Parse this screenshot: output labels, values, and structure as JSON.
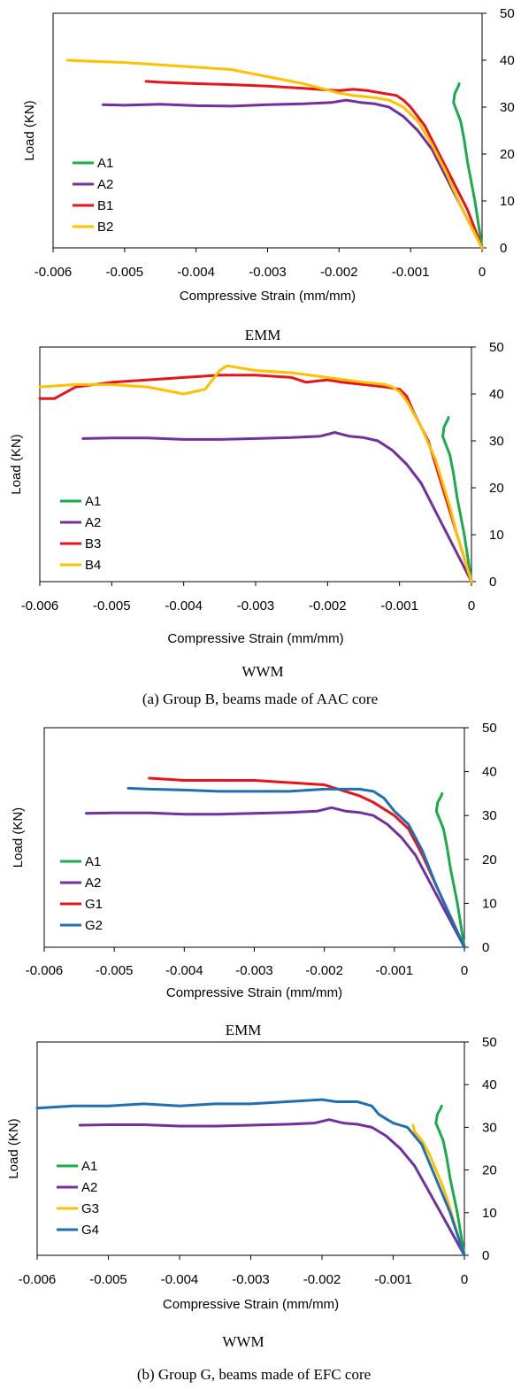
{
  "captions": {
    "chart1": "EMM",
    "chart2": "WWM",
    "group_b": "(a)  Group B, beams made of AAC core",
    "chart3": "EMM",
    "chart4": "WWM",
    "group_g": "(b)  Group G, beams made of EFC core"
  },
  "chart_data": [
    {
      "type": "line",
      "caption": "EMM",
      "xlabel": "Compressive Strain (mm/mm)",
      "ylabel": "Load (KN)",
      "xlim": [
        -0.006,
        0
      ],
      "ylim": [
        0,
        50
      ],
      "x_ticks": [
        "-0.006",
        "-0.005",
        "-0.004",
        "-0.003",
        "-0.002",
        "-0.001",
        "0"
      ],
      "y_ticks": [
        "0",
        "10",
        "20",
        "30",
        "40",
        "50"
      ],
      "grid": false,
      "legend": "left",
      "series": [
        {
          "name": "A1",
          "color": "#1aab4b",
          "x": [
            0,
            -0.0001,
            -0.0002,
            -0.00025,
            -0.0003,
            -0.00035,
            -0.0004,
            -0.00038,
            -0.00033,
            -0.00032
          ],
          "y": [
            0,
            10,
            18,
            23,
            27,
            29,
            31,
            33,
            34.5,
            35
          ]
        },
        {
          "name": "A2",
          "color": "#7030a0",
          "x": [
            0,
            -0.0001,
            -0.0003,
            -0.0005,
            -0.0007,
            -0.0009,
            -0.0011,
            -0.0013,
            -0.0015,
            -0.0017,
            -0.0019,
            -0.0021,
            -0.0025,
            -0.003,
            -0.0035,
            -0.004,
            -0.0045,
            -0.005,
            -0.0053
          ],
          "y": [
            0,
            3,
            9,
            15,
            21,
            25,
            28,
            30,
            30.7,
            31,
            31.5,
            31,
            30.7,
            30.5,
            30.2,
            30.3,
            30.6,
            30.4,
            30.5
          ]
        },
        {
          "name": "B1",
          "color": "#e8141b",
          "x": [
            0,
            -0.0002,
            -0.0004,
            -0.0006,
            -0.0008,
            -0.001,
            -0.0011,
            -0.0012,
            -0.0014,
            -0.0016,
            -0.0018,
            -0.002,
            -0.0025,
            -0.003,
            -0.0035,
            -0.004,
            -0.0045,
            -0.0047
          ],
          "y": [
            0,
            8,
            14,
            20,
            26,
            30,
            31.5,
            32.5,
            33,
            33.5,
            33.8,
            33.5,
            34,
            34.5,
            34.8,
            35,
            35.3,
            35.5
          ]
        },
        {
          "name": "B2",
          "color": "#ffc000",
          "x": [
            0,
            -0.0003,
            -0.0005,
            -0.0007,
            -0.0009,
            -0.0011,
            -0.0013,
            -0.0015,
            -0.0018,
            -0.002,
            -0.0025,
            -0.003,
            -0.0035,
            -0.004,
            -0.0045,
            -0.005,
            -0.0055,
            -0.0058
          ],
          "y": [
            0,
            9,
            16,
            22,
            27,
            30,
            31.5,
            32,
            32.5,
            33,
            35,
            36.5,
            38,
            38.5,
            39,
            39.5,
            39.8,
            40
          ]
        }
      ]
    },
    {
      "type": "line",
      "caption": "WWM",
      "xlabel": "Compressive Strain (mm/mm)",
      "ylabel": "Load (KN)",
      "xlim": [
        -0.006,
        0
      ],
      "ylim": [
        0,
        50
      ],
      "x_ticks": [
        "-0.006",
        "-0.005",
        "-0.004",
        "-0.003",
        "-0.002",
        "-0.001",
        "0"
      ],
      "y_ticks": [
        "0",
        "10",
        "20",
        "30",
        "40",
        "50"
      ],
      "grid": false,
      "legend": "left",
      "series": [
        {
          "name": "A1",
          "color": "#1aab4b",
          "x": [
            0,
            -0.0001,
            -0.0002,
            -0.00025,
            -0.0003,
            -0.00035,
            -0.0004,
            -0.00038,
            -0.00033,
            -0.00032
          ],
          "y": [
            0,
            10,
            18,
            23,
            27,
            29,
            31,
            33,
            34.5,
            35
          ]
        },
        {
          "name": "A2",
          "color": "#7030a0",
          "x": [
            0,
            -0.0001,
            -0.0003,
            -0.0005,
            -0.0007,
            -0.0009,
            -0.0011,
            -0.0013,
            -0.0015,
            -0.0017,
            -0.0019,
            -0.0021,
            -0.0025,
            -0.003,
            -0.0035,
            -0.004,
            -0.0045,
            -0.005,
            -0.0054
          ],
          "y": [
            0,
            3,
            9,
            15,
            21,
            25,
            28,
            30,
            30.7,
            31,
            31.8,
            31,
            30.7,
            30.5,
            30.3,
            30.3,
            30.6,
            30.6,
            30.5
          ]
        },
        {
          "name": "B3",
          "color": "#e8141b",
          "x": [
            0,
            -0.0002,
            -0.0004,
            -0.0006,
            -0.0008,
            -0.0009,
            -0.001,
            -0.0012,
            -0.0015,
            -0.0018,
            -0.002,
            -0.0023,
            -0.0025,
            -0.003,
            -0.0035,
            -0.004,
            -0.0045,
            -0.005,
            -0.0055,
            -0.0058,
            -0.006
          ],
          "y": [
            0,
            10,
            20,
            30,
            36,
            39.5,
            41,
            41.5,
            42,
            42.5,
            43,
            42.5,
            43.5,
            44,
            44,
            43.5,
            43,
            42.5,
            41.5,
            39,
            39
          ]
        },
        {
          "name": "B4",
          "color": "#ffc000",
          "x": [
            0,
            -0.0002,
            -0.0003,
            -0.0005,
            -0.0007,
            -0.0009,
            -0.001,
            -0.0011,
            -0.0012,
            -0.0015,
            -0.002,
            -0.0025,
            -0.003,
            -0.0034,
            -0.0035,
            -0.0037,
            -0.004,
            -0.0045,
            -0.005,
            -0.0055,
            -0.006
          ],
          "y": [
            0,
            10,
            16,
            26,
            33,
            38.5,
            40.5,
            41.5,
            42,
            42.5,
            43.5,
            44.5,
            45,
            46,
            45,
            41,
            40,
            41.5,
            42,
            42,
            41.5
          ]
        }
      ]
    },
    {
      "type": "line",
      "caption": "EMM",
      "xlabel": "Compressive Strain (mm/mm)",
      "ylabel": "Load (KN)",
      "xlim": [
        -0.006,
        0
      ],
      "ylim": [
        0,
        50
      ],
      "x_ticks": [
        "-0.006",
        "-0.005",
        "-0.004",
        "-0.003",
        "-0.002",
        "-0.001",
        "0"
      ],
      "y_ticks": [
        "0",
        "10",
        "20",
        "30",
        "40",
        "50"
      ],
      "grid": false,
      "legend": "left",
      "series": [
        {
          "name": "A1",
          "color": "#1aab4b",
          "x": [
            0,
            -0.0001,
            -0.0002,
            -0.00025,
            -0.0003,
            -0.00035,
            -0.0004,
            -0.00038,
            -0.00033,
            -0.00032
          ],
          "y": [
            0,
            10,
            18,
            23,
            27,
            29,
            31,
            33,
            34.5,
            35
          ]
        },
        {
          "name": "A2",
          "color": "#7030a0",
          "x": [
            0,
            -0.0001,
            -0.0003,
            -0.0005,
            -0.0007,
            -0.0009,
            -0.0011,
            -0.0013,
            -0.0015,
            -0.0017,
            -0.0019,
            -0.0021,
            -0.0025,
            -0.003,
            -0.0035,
            -0.004,
            -0.0045,
            -0.005,
            -0.0054
          ],
          "y": [
            0,
            3,
            9,
            15,
            21,
            25,
            28,
            30,
            30.7,
            31,
            31.8,
            31,
            30.7,
            30.5,
            30.3,
            30.3,
            30.6,
            30.6,
            30.5
          ]
        },
        {
          "name": "G1",
          "color": "#e8141b",
          "x": [
            0,
            -0.0002,
            -0.0004,
            -0.0006,
            -0.0008,
            -0.001,
            -0.0011,
            -0.0012,
            -0.0013,
            -0.0015,
            -0.0017,
            -0.0019,
            -0.002,
            -0.0025,
            -0.003,
            -0.0035,
            -0.004,
            -0.0045
          ],
          "y": [
            0,
            7,
            14,
            21,
            27,
            30,
            31,
            32,
            33,
            34.5,
            35.5,
            36.5,
            37,
            37.5,
            38,
            38,
            38,
            38.5
          ]
        },
        {
          "name": "G2",
          "color": "#1f6fb5",
          "x": [
            0,
            -0.0002,
            -0.0004,
            -0.0006,
            -0.0008,
            -0.001,
            -0.0011,
            -0.00115,
            -0.0012,
            -0.0013,
            -0.0015,
            -0.0018,
            -0.002,
            -0.0025,
            -0.003,
            -0.0035,
            -0.004,
            -0.0045,
            -0.0048
          ],
          "y": [
            0,
            7,
            14,
            22,
            28,
            31,
            33,
            34,
            34.5,
            35.5,
            36,
            36,
            36,
            35.5,
            35.5,
            35.5,
            35.8,
            36,
            36.2
          ]
        }
      ]
    },
    {
      "type": "line",
      "caption": "WWM",
      "xlabel": "Compressive Strain (mm/mm)",
      "ylabel": "Load (KN)",
      "xlim": [
        -0.006,
        0
      ],
      "ylim": [
        0,
        50
      ],
      "x_ticks": [
        "-0.006",
        "-0.005",
        "-0.004",
        "-0.003",
        "-0.002",
        "-0.001",
        "0"
      ],
      "y_ticks": [
        "0",
        "10",
        "20",
        "30",
        "40",
        "50"
      ],
      "grid": false,
      "legend": "left",
      "series": [
        {
          "name": "A1",
          "color": "#1aab4b",
          "x": [
            0,
            -0.0001,
            -0.0002,
            -0.00025,
            -0.0003,
            -0.00035,
            -0.0004,
            -0.00038,
            -0.00033,
            -0.00032
          ],
          "y": [
            0,
            10,
            18,
            23,
            27,
            29,
            31,
            33,
            34.5,
            35
          ]
        },
        {
          "name": "A2",
          "color": "#7030a0",
          "x": [
            0,
            -0.0001,
            -0.0003,
            -0.0005,
            -0.0007,
            -0.0009,
            -0.0011,
            -0.0013,
            -0.0015,
            -0.0017,
            -0.0019,
            -0.0021,
            -0.0025,
            -0.003,
            -0.0035,
            -0.004,
            -0.0045,
            -0.005,
            -0.0054
          ],
          "y": [
            0,
            3,
            9,
            15,
            21,
            25,
            28,
            30,
            30.7,
            31,
            31.8,
            31,
            30.7,
            30.5,
            30.3,
            30.3,
            30.6,
            30.6,
            30.5
          ]
        },
        {
          "name": "G3",
          "color": "#ffc000",
          "x": [
            0,
            -0.0001,
            -0.0002,
            -0.0003,
            -0.0004,
            -0.0005,
            -0.0006,
            -0.0007,
            -0.00072
          ],
          "y": [
            0,
            5,
            11,
            16,
            20,
            24,
            27,
            29,
            30.5
          ]
        },
        {
          "name": "G4",
          "color": "#1f6fb5",
          "x": [
            0,
            -0.0002,
            -0.0004,
            -0.0006,
            -0.0008,
            -0.0009,
            -0.001,
            -0.0011,
            -0.0012,
            -0.0013,
            -0.0015,
            -0.0018,
            -0.002,
            -0.0025,
            -0.003,
            -0.0035,
            -0.004,
            -0.0045,
            -0.005,
            -0.0055,
            -0.006
          ],
          "y": [
            0,
            10,
            18,
            26,
            30,
            30.5,
            31,
            32,
            33,
            35,
            36,
            36,
            36.5,
            36,
            35.5,
            35.5,
            35,
            35.5,
            35,
            35,
            34.5
          ]
        }
      ]
    }
  ]
}
